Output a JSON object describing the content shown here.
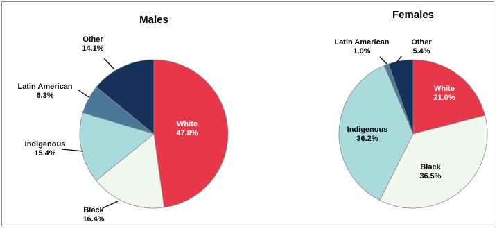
{
  "chart_data": [
    {
      "type": "pie",
      "title": "Males",
      "slices": [
        {
          "name": "White",
          "value": 47.8,
          "label": "47.8%",
          "color": "#e8364a"
        },
        {
          "name": "Black",
          "value": 16.4,
          "label": "16.4%",
          "color": "#f1f6ee"
        },
        {
          "name": "Indigenous",
          "value": 15.4,
          "label": "15.4%",
          "color": "#a9dbdc"
        },
        {
          "name": "Latin American",
          "value": 6.3,
          "label": "6.3%",
          "color": "#4a7898"
        },
        {
          "name": "Other",
          "value": 14.1,
          "label": "14.1%",
          "color": "#17325a"
        }
      ]
    },
    {
      "type": "pie",
      "title": "Females",
      "slices": [
        {
          "name": "White",
          "value": 21.0,
          "label": "21.0%",
          "color": "#e8364a"
        },
        {
          "name": "Black",
          "value": 36.5,
          "label": "36.5%",
          "color": "#f1f6ee"
        },
        {
          "name": "Indigenous",
          "value": 36.2,
          "label": "36.2%",
          "color": "#a9dbdc"
        },
        {
          "name": "Latin American",
          "value": 1.0,
          "label": "1.0%",
          "color": "#4a7898"
        },
        {
          "name": "Other",
          "value": 5.4,
          "label": "5.4%",
          "color": "#17325a"
        }
      ]
    }
  ]
}
